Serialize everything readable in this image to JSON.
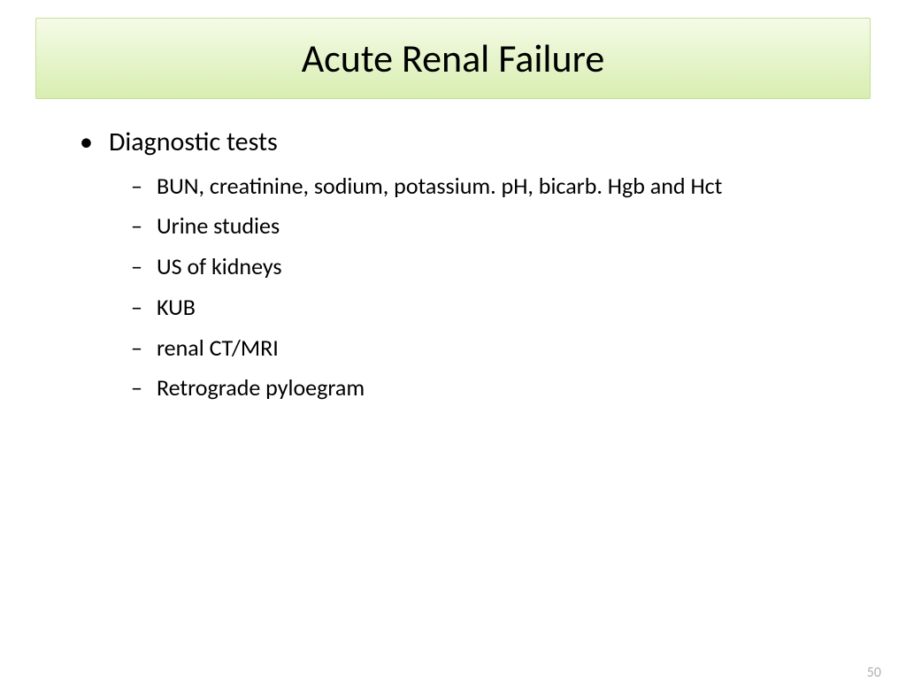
{
  "slide": {
    "title": "Acute Renal Failure",
    "title_box": {
      "gradient_top": "#f5fbe8",
      "gradient_bottom": "#d8eeb0",
      "border_color": "#c5df9a"
    },
    "main_bullet": "Diagnostic tests",
    "sub_bullets": [
      "BUN, creatinine, sodium, potassium. pH, bicarb. Hgb and Hct",
      "Urine studies",
      "US of kidneys",
      "KUB",
      "renal CT/MRI",
      "Retrograde pyloegram"
    ],
    "slide_number": "50",
    "font_family": "Calibri",
    "title_fontsize": 44,
    "l1_fontsize": 30,
    "l2_fontsize": 26,
    "text_color": "#000000",
    "background_color": "#ffffff",
    "slide_number_color": "#b0b0b0"
  }
}
